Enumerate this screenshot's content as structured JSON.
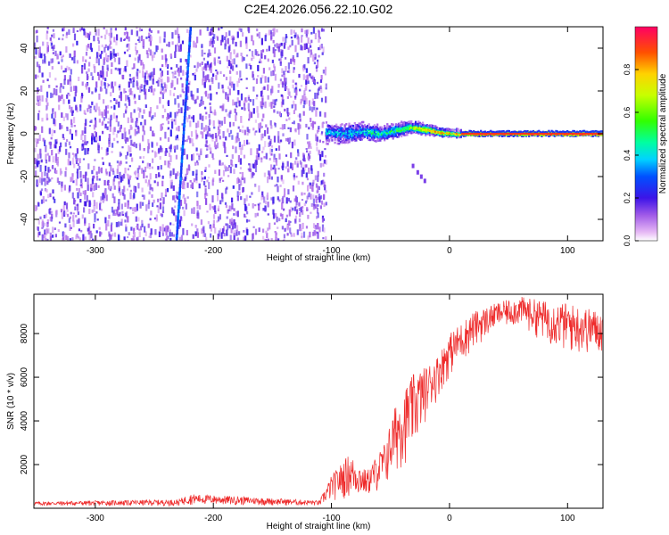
{
  "title": "C2E4.2026.056.22.10.G02",
  "chart_data": [
    {
      "type": "heatmap",
      "title": "C2E4.2026.056.22.10.G02",
      "xlabel": "Height of straight line (km)",
      "ylabel": "Frequency (Hz)",
      "xlim": [
        -352,
        130
      ],
      "ylim": [
        -50,
        50
      ],
      "xticks": [
        -300,
        -200,
        -100,
        0,
        100
      ],
      "yticks": [
        -40,
        -20,
        0,
        20,
        40
      ],
      "signal_track": [
        {
          "x": -105,
          "f": 0.5,
          "amp": 0.32
        },
        {
          "x": -90,
          "f": 0.0,
          "amp": 0.36
        },
        {
          "x": -75,
          "f": 1.0,
          "amp": 0.4
        },
        {
          "x": -60,
          "f": 0.0,
          "amp": 0.42
        },
        {
          "x": -45,
          "f": 1.5,
          "amp": 0.5
        },
        {
          "x": -35,
          "f": 3.0,
          "amp": 0.6
        },
        {
          "x": -25,
          "f": 2.5,
          "amp": 0.75
        },
        {
          "x": -15,
          "f": 1.5,
          "amp": 0.82
        },
        {
          "x": -5,
          "f": 0.5,
          "amp": 0.78
        },
        {
          "x": 10,
          "f": 0.0,
          "amp": 0.85
        },
        {
          "x": 130,
          "f": 0.0,
          "amp": 0.92
        }
      ],
      "noise_region": {
        "x_from": -352,
        "x_to": -105
      },
      "colorbar": {
        "label": "Normalized spectral amplitude",
        "range": [
          0,
          1
        ],
        "ticks": [
          0.0,
          0.2,
          0.4,
          0.6,
          0.8
        ],
        "tick_labels": [
          "0.0",
          "0.2",
          "0.4",
          "0.6",
          "0.8"
        ]
      }
    },
    {
      "type": "line",
      "xlabel": "Height of straight line (km)",
      "ylabel": "SNR (10 * v/v)",
      "xlim": [
        -352,
        130
      ],
      "ylim": [
        0,
        9800
      ],
      "xticks": [
        -300,
        -200,
        -100,
        0,
        100
      ],
      "yticks": [
        2000,
        4000,
        6000,
        8000
      ],
      "series": [
        {
          "name": "SNR",
          "color": "#ee2b2b",
          "envelope": [
            {
              "x": -352,
              "low": 100,
              "high": 300
            },
            {
              "x": -230,
              "low": 100,
              "high": 400
            },
            {
              "x": -220,
              "low": 150,
              "high": 650
            },
            {
              "x": -110,
              "low": 100,
              "high": 350
            },
            {
              "x": -100,
              "low": 300,
              "high": 1500
            },
            {
              "x": -85,
              "low": 400,
              "high": 2500
            },
            {
              "x": -70,
              "low": 500,
              "high": 1700
            },
            {
              "x": -55,
              "low": 800,
              "high": 3000
            },
            {
              "x": -45,
              "low": 1500,
              "high": 4900
            },
            {
              "x": -30,
              "low": 2500,
              "high": 6200
            },
            {
              "x": -20,
              "low": 4000,
              "high": 6500
            },
            {
              "x": -10,
              "low": 5000,
              "high": 7000
            },
            {
              "x": 0,
              "low": 6000,
              "high": 8000
            },
            {
              "x": 20,
              "low": 7200,
              "high": 9000
            },
            {
              "x": 40,
              "low": 8200,
              "high": 9400
            },
            {
              "x": 60,
              "low": 8300,
              "high": 9700
            },
            {
              "x": 80,
              "low": 7600,
              "high": 9500
            },
            {
              "x": 100,
              "low": 7000,
              "high": 9400
            },
            {
              "x": 130,
              "low": 7000,
              "high": 9000
            }
          ]
        }
      ]
    }
  ]
}
